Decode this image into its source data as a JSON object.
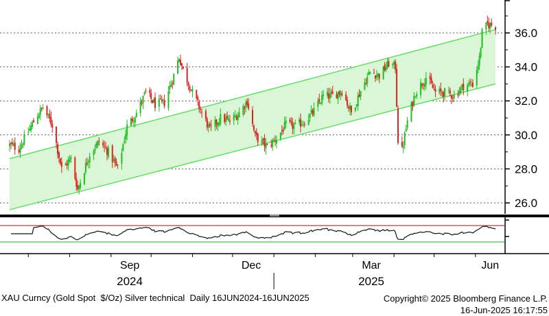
{
  "chart_data": [
    {
      "type": "candlestick",
      "instrument": "XAU Curncy (Gold Spot  $/Oz) Silver technical",
      "period": "Daily 16JUN2024-16JUN2025",
      "y_ticks": [
        "26.0",
        "28.0",
        "30.0",
        "32.0",
        "34.0",
        "36.0"
      ],
      "ylim": [
        25.0,
        37.9
      ],
      "x_month_labels": [
        "Sep",
        "Dec",
        "Mar",
        "Jun"
      ],
      "x_year_labels": [
        "2024",
        "2025"
      ],
      "colors": {
        "up": "#22bb22",
        "down": "#dd2222",
        "channel_fill": "#d9f7d6",
        "channel_line": "#66dd66"
      },
      "channel": {
        "upper": {
          "start": [
            "2024-06-17",
            28.6
          ],
          "end": [
            "2025-06-16",
            36.2
          ]
        },
        "lower": {
          "start": [
            "2024-06-17",
            25.6
          ],
          "end": [
            "2025-06-16",
            33.0
          ]
        }
      },
      "close_anchors": [
        [
          "2024-06-17",
          29.4
        ],
        [
          "2024-06-24",
          29.2
        ],
        [
          "2024-07-01",
          30.2
        ],
        [
          "2024-07-08",
          31.2
        ],
        [
          "2024-07-12",
          31.6
        ],
        [
          "2024-07-19",
          30.6
        ],
        [
          "2024-07-26",
          28.0
        ],
        [
          "2024-08-02",
          28.6
        ],
        [
          "2024-08-07",
          26.8
        ],
        [
          "2024-08-16",
          28.9
        ],
        [
          "2024-08-23",
          29.6
        ],
        [
          "2024-08-30",
          29.0
        ],
        [
          "2024-09-06",
          28.0
        ],
        [
          "2024-09-13",
          30.5
        ],
        [
          "2024-09-20",
          31.3
        ],
        [
          "2024-09-27",
          32.5
        ],
        [
          "2024-10-04",
          31.8
        ],
        [
          "2024-10-11",
          31.9
        ],
        [
          "2024-10-18",
          33.5
        ],
        [
          "2024-10-22",
          34.6
        ],
        [
          "2024-10-25",
          33.8
        ],
        [
          "2024-11-01",
          32.5
        ],
        [
          "2024-11-08",
          31.3
        ],
        [
          "2024-11-14",
          30.3
        ],
        [
          "2024-11-22",
          31.0
        ],
        [
          "2024-11-29",
          30.8
        ],
        [
          "2024-12-06",
          31.3
        ],
        [
          "2024-12-12",
          32.0
        ],
        [
          "2024-12-18",
          29.9
        ],
        [
          "2024-12-27",
          29.3
        ],
        [
          "2025-01-03",
          29.8
        ],
        [
          "2025-01-10",
          30.6
        ],
        [
          "2025-01-17",
          30.5
        ],
        [
          "2025-01-24",
          30.8
        ],
        [
          "2025-01-31",
          31.4
        ],
        [
          "2025-02-07",
          32.3
        ],
        [
          "2025-02-14",
          32.3
        ],
        [
          "2025-02-21",
          32.6
        ],
        [
          "2025-02-28",
          31.3
        ],
        [
          "2025-03-07",
          32.6
        ],
        [
          "2025-03-14",
          33.7
        ],
        [
          "2025-03-21",
          33.5
        ],
        [
          "2025-03-28",
          34.2
        ],
        [
          "2025-04-02",
          34.0
        ],
        [
          "2025-04-04",
          29.7
        ],
        [
          "2025-04-07",
          29.1
        ],
        [
          "2025-04-11",
          30.8
        ],
        [
          "2025-04-17",
          32.5
        ],
        [
          "2025-04-25",
          33.4
        ],
        [
          "2025-05-02",
          32.5
        ],
        [
          "2025-05-09",
          32.5
        ],
        [
          "2025-05-16",
          32.3
        ],
        [
          "2025-05-23",
          32.9
        ],
        [
          "2025-05-30",
          33.0
        ],
        [
          "2025-06-04",
          34.5
        ],
        [
          "2025-06-06",
          36.0
        ],
        [
          "2025-06-10",
          36.5
        ],
        [
          "2025-06-16",
          36.4
        ]
      ]
    },
    {
      "type": "line",
      "indicator": "RSI",
      "reference_levels": [
        70,
        30
      ],
      "level_colors": {
        "overbought": "#cc3333",
        "oversold": "#33cc33"
      }
    }
  ],
  "footer": {
    "left": "XAU Curncy (Gold Spot  $/Oz) Silver technical  Daily 16JUN2024-16JUN2025",
    "copyright": "Copyright© 2025 Bloomberg Finance L.P.",
    "timestamp": "16-Jun-2025 16:17:55"
  }
}
